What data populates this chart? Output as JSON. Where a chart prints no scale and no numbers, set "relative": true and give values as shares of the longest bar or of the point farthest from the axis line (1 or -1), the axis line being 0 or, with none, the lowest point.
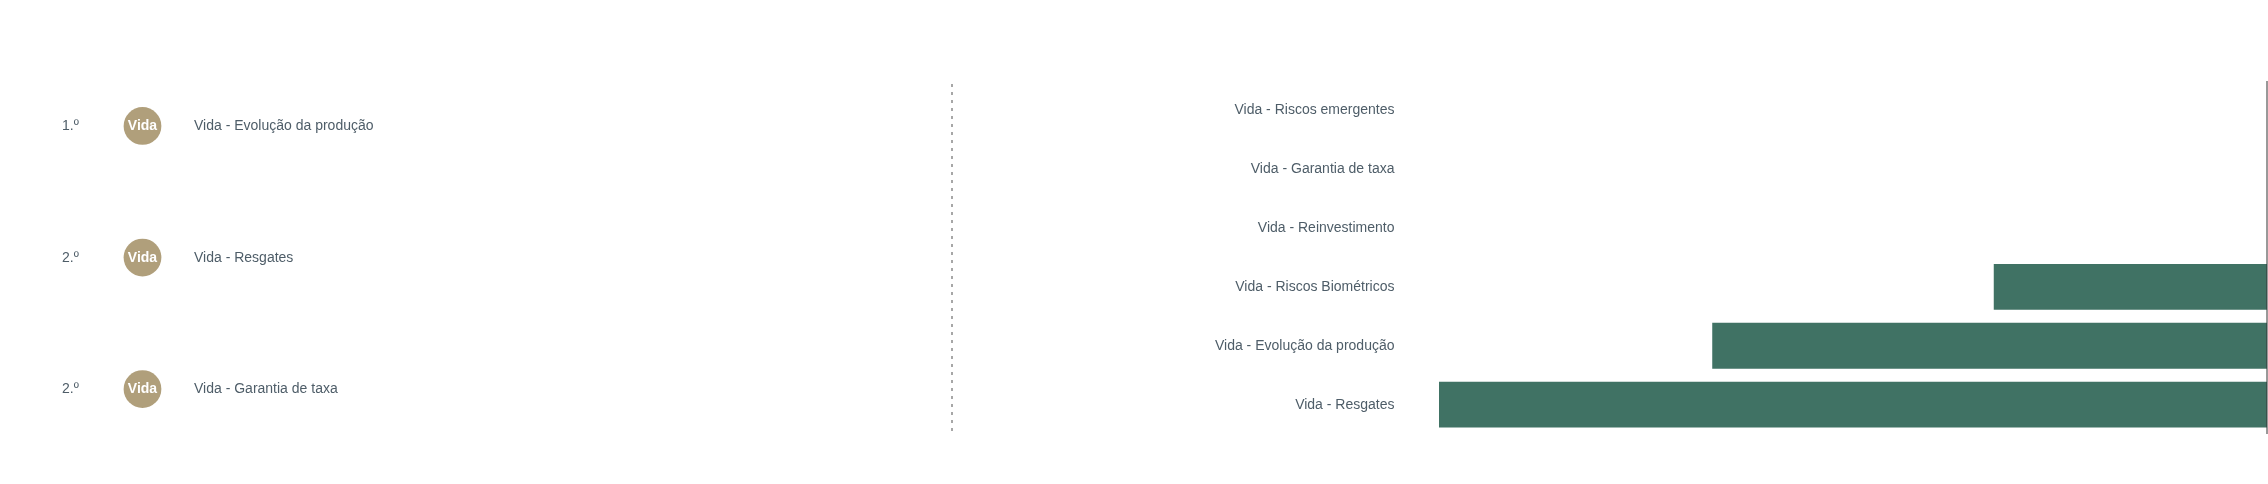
{
  "chart_data": [
    {
      "type": "other",
      "annotations": [
        "1.º",
        "Vida",
        "Vida - Evolução da produção",
        "2.º",
        "Vida",
        "Vida - Resgates",
        "2.º",
        "Vida",
        "Vida - Garantia de taxa"
      ]
    },
    {
      "type": "bar",
      "orientation": "horizontal",
      "relative": true,
      "categories": [
        "Vida - Riscos emergentes",
        "Vida - Garantia de taxa",
        "Vida - Reinvestimento",
        "Vida - Riscos Biométricos",
        "Vida - Evolução da produção",
        "Vida - Resgates"
      ],
      "values": [
        0,
        0,
        0,
        -0.33,
        -0.67,
        -1
      ],
      "color": "#407264"
    }
  ]
}
